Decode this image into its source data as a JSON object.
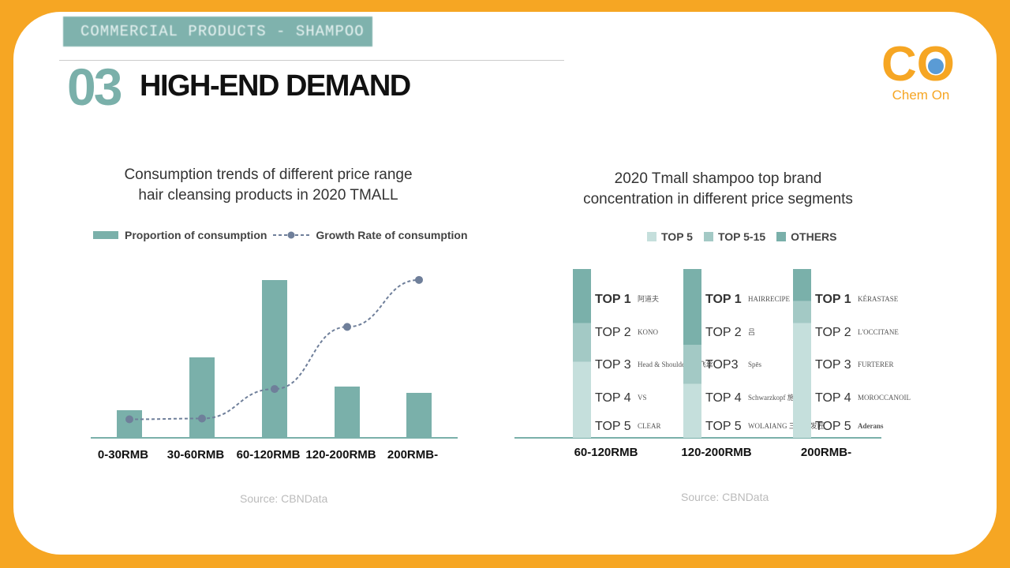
{
  "header": {
    "tag": "COMMERCIAL PRODUCTS - SHAMPOO",
    "number": "03",
    "title": "HIGH-END DEMAND",
    "logo_text": "Chem On",
    "logo_letters": "CO"
  },
  "colors": {
    "background": "#f6a623",
    "teal": "#7ab0aa",
    "light_teal": "#a3c9c5",
    "pale_teal": "#c5dfdc",
    "line": "#6f7f9a"
  },
  "chart_data": [
    {
      "type": "bar+line",
      "title": "Consumption trends of different price range hair cleansing products in 2020 TMALL",
      "title_lines": [
        "Consumption trends of different price range",
        "hair cleansing products in 2020 TMALL"
      ],
      "categories": [
        "0-30RMB",
        "30-60RMB",
        "60-120RMB",
        "120-200RMB",
        "200RMB-"
      ],
      "series": [
        {
          "name": "Proportion of consumption",
          "type": "bar",
          "values": [
            17.5,
            51,
            100,
            32.5,
            28.5
          ]
        },
        {
          "name": "Growth Rate of consumption",
          "type": "line",
          "style": "dashed",
          "values": [
            6,
            6.5,
            26,
            67,
            98
          ]
        }
      ],
      "ylim": [
        0,
        100
      ],
      "grid": false,
      "legend": "top",
      "source": "Source: CBNData"
    },
    {
      "type": "stacked-bar",
      "title": "2020 Tmall shampoo top brand concentration in different price segments",
      "title_lines": [
        "2020 Tmall shampoo top brand",
        "concentration in different price segments"
      ],
      "categories": [
        "60-120RMB",
        "120-200RMB",
        "200RMB-"
      ],
      "series": [
        {
          "name": "TOP 5",
          "values": [
            45,
            32,
            68
          ]
        },
        {
          "name": "TOP 5-15",
          "values": [
            23,
            23,
            13
          ]
        },
        {
          "name": "OTHERS",
          "values": [
            32,
            45,
            19
          ]
        }
      ],
      "ylim": [
        0,
        100
      ],
      "legend": "top",
      "rankings": [
        {
          "ranks": [
            "TOP 1",
            "TOP 2",
            "TOP 3",
            "TOP 4",
            "TOP 5"
          ],
          "brands": [
            "阿道夫",
            "KONO",
            "Head & Shoulders 海飞丝",
            "VS",
            "CLEAR"
          ]
        },
        {
          "ranks": [
            "TOP 1",
            "TOP 2",
            "TOP3",
            "TOP 4",
            "TOP 5"
          ],
          "brands": [
            "HAIRRECIPE",
            "吕",
            "Spēs",
            "Schwarzkopf 施华蔻",
            "WOLAIANG 三个魔发匠"
          ]
        },
        {
          "ranks": [
            "TOP 1",
            "TOP 2",
            "TOP 3",
            "TOP 4",
            "TOP 5"
          ],
          "brands": [
            "KÉRASTASE",
            "L'OCCITANE",
            "FURTERER",
            "MOROCCANOIL",
            "Aderans"
          ]
        }
      ],
      "source": "Source: CBNData"
    }
  ]
}
